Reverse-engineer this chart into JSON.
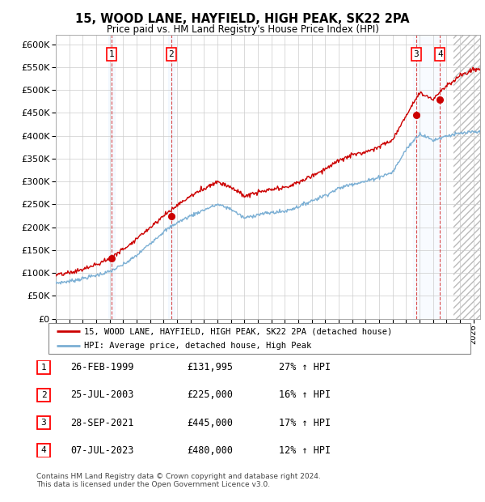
{
  "title": "15, WOOD LANE, HAYFIELD, HIGH PEAK, SK22 2PA",
  "subtitle": "Price paid vs. HM Land Registry's House Price Index (HPI)",
  "ylim": [
    0,
    620000
  ],
  "yticks": [
    0,
    50000,
    100000,
    150000,
    200000,
    250000,
    300000,
    350000,
    400000,
    450000,
    500000,
    550000,
    600000
  ],
  "xlim_start": 1995.0,
  "xlim_end": 2026.5,
  "sale_dates": [
    1999.15,
    2003.57,
    2021.74,
    2023.52
  ],
  "sale_prices": [
    131995,
    225000,
    445000,
    480000
  ],
  "sale_labels": [
    "1",
    "2",
    "3",
    "4"
  ],
  "legend_label_red": "15, WOOD LANE, HAYFIELD, HIGH PEAK, SK22 2PA (detached house)",
  "legend_label_blue": "HPI: Average price, detached house, High Peak",
  "table_rows": [
    [
      "1",
      "26-FEB-1999",
      "£131,995",
      "27% ↑ HPI"
    ],
    [
      "2",
      "25-JUL-2003",
      "£225,000",
      "16% ↑ HPI"
    ],
    [
      "3",
      "28-SEP-2021",
      "£445,000",
      "17% ↑ HPI"
    ],
    [
      "4",
      "07-JUL-2023",
      "£480,000",
      "12% ↑ HPI"
    ]
  ],
  "footer": "Contains HM Land Registry data © Crown copyright and database right 2024.\nThis data is licensed under the Open Government Licence v3.0.",
  "hpi_color": "#7bafd4",
  "price_color": "#cc0000",
  "bg_color": "#ffffff",
  "grid_color": "#cccccc",
  "span_color": "#ddeeff",
  "hatch_color": "#bbbbbb",
  "hpi_anchors_t": [
    1995,
    1996,
    1997,
    1998,
    1999,
    2000,
    2001,
    2002,
    2003,
    2004,
    2005,
    2006,
    2007,
    2008,
    2009,
    2010,
    2011,
    2012,
    2013,
    2014,
    2015,
    2016,
    2017,
    2018,
    2019,
    2020,
    2021,
    2022,
    2023,
    2024,
    2025,
    2026
  ],
  "hpi_anchors_v": [
    78000,
    82000,
    88000,
    95000,
    103000,
    118000,
    138000,
    165000,
    190000,
    210000,
    225000,
    238000,
    250000,
    240000,
    220000,
    228000,
    232000,
    235000,
    245000,
    258000,
    270000,
    285000,
    295000,
    300000,
    310000,
    320000,
    370000,
    405000,
    390000,
    400000,
    405000,
    408000
  ],
  "price_anchors_t": [
    1995,
    1996,
    1997,
    1998,
    1999,
    2000,
    2001,
    2002,
    2003,
    2004,
    2005,
    2006,
    2007,
    2008,
    2009,
    2010,
    2011,
    2012,
    2013,
    2014,
    2015,
    2016,
    2017,
    2018,
    2019,
    2020,
    2021,
    2022,
    2023,
    2024,
    2025,
    2026
  ],
  "price_anchors_v": [
    95000,
    100000,
    108000,
    118000,
    131995,
    152000,
    175000,
    200000,
    225000,
    248000,
    268000,
    285000,
    300000,
    288000,
    268000,
    276000,
    282000,
    286000,
    298000,
    312000,
    328000,
    345000,
    358000,
    365000,
    377000,
    390000,
    445000,
    495000,
    480000,
    510000,
    530000,
    545000
  ],
  "noise_seed_hpi": 7,
  "noise_seed_price": 13,
  "noise_hpi": 2000,
  "noise_price": 2500
}
